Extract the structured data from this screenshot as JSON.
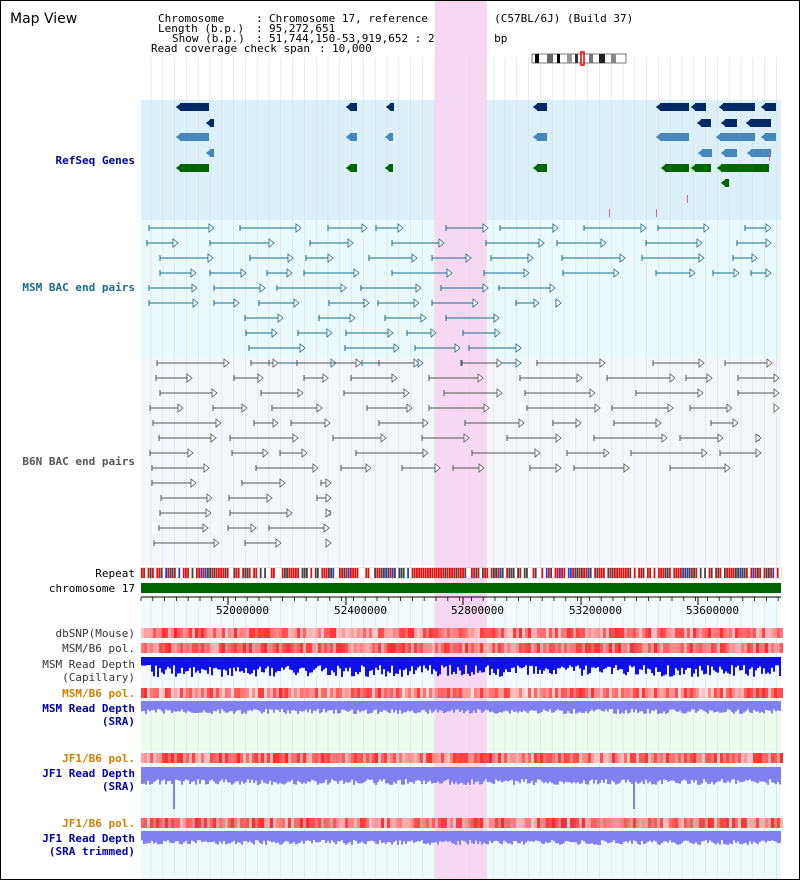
{
  "header": {
    "title": "Map View",
    "chromosome_key": "Chromosome",
    "chromosome_value": "Chromosome 17, reference assembly (C57BL/6J) (Build 37)",
    "length_key": "Length (b.p.)",
    "length_value": "95,272,651",
    "show_key": "Show (b.p.)",
    "show_value": "51,744,150-53,919,652 : 2,175,503 bp",
    "span_key": "Read coverage check span",
    "span_value": "10,000"
  },
  "tracks": {
    "refseq": "RefSeq Genes",
    "msm_bac": "MSM BAC end pairs",
    "b6n_bac": "B6N BAC end pairs",
    "repeat": "Repeat",
    "chromosome": "chromosome 17",
    "dbsnp": "dbSNP(Mouse)",
    "msm_b6_pol_1": "MSM/B6 pol.",
    "msm_read_depth_cap_1": "MSM Read Depth",
    "msm_read_depth_cap_2": "(Capillary)",
    "msm_b6_pol_2": "MSM/B6 pol.",
    "msm_read_depth_sra_1": "MSM Read Depth",
    "msm_read_depth_sra_2": "(SRA)",
    "jf1_b6_pol_1": "JF1/B6 pol.",
    "jf1_read_depth_sra_1": "JF1 Read Depth",
    "jf1_read_depth_sra_2": "(SRA)",
    "jf1_b6_pol_2": "JF1/B6 pol.",
    "jf1_read_depth_trim_1": "JF1 Read Depth",
    "jf1_read_depth_trim_2": "(SRA trimmed)"
  },
  "axis": {
    "ticks": [
      "52000000",
      "52400000",
      "52800000",
      "53200000",
      "53600000"
    ]
  },
  "colors": {
    "refseq_bg": "#dcf0fa",
    "bac_bg": "#e8fafa",
    "b6n_bg": "#f4f6fa",
    "highlight": "#f8d8f0",
    "chromosome_bar": "#006400",
    "dark_gene": "#002a66",
    "mid_gene": "#4488bb",
    "green_gene": "#006600",
    "msm_line": "#1a6c8c",
    "b6n_line": "#555555",
    "depth_blue": "#1010ee",
    "depth_lavender": "#8080f0",
    "label_blue": "#0000aa",
    "label_teal": "#1a6c8c",
    "label_orange": "#d08000",
    "label_gray": "#333333"
  }
}
